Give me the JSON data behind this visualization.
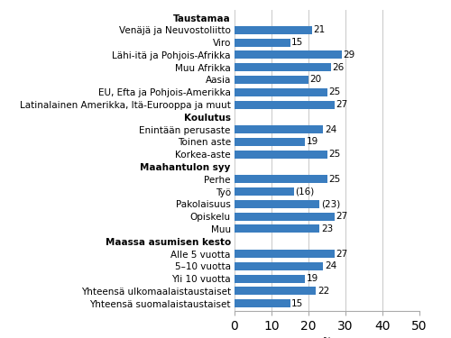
{
  "categories": [
    "Taustamaa",
    "Venäjä ja Neuvostoliitto",
    "Viro",
    "Lähi-itä ja Pohjois-Afrikka",
    "Muu Afrikka",
    "Aasia",
    "EU, Efta ja Pohjois-Amerikka",
    "Latinalainen Amerikka, Itä-Eurooppa ja muut",
    "Koulutus",
    "Enintään perusaste",
    "Toinen aste",
    "Korkea-aste",
    "Maahantulon syy",
    "Perhe",
    "Työ",
    "Pakolaisuus",
    "Opiskelu",
    "Muu",
    "Maassa asumisen kesto",
    "Alle 5 vuotta",
    "5–10 vuotta",
    "Yli 10 vuotta",
    "Yhteensä ulkomaalaistaustaiset",
    "Yhteensä suomalaistaustaiset"
  ],
  "values": [
    null,
    21,
    15,
    29,
    26,
    20,
    25,
    27,
    null,
    24,
    19,
    25,
    null,
    25,
    16,
    23,
    27,
    23,
    null,
    27,
    24,
    19,
    22,
    15
  ],
  "value_labels": [
    null,
    "21",
    "15",
    "29",
    "26",
    "20",
    "25",
    "27",
    null,
    "24",
    "19",
    "25",
    null,
    "25",
    "(16)",
    "(23)",
    "27",
    "23",
    null,
    "27",
    "24",
    "19",
    "22",
    "15"
  ],
  "bold_indices": [
    0,
    8,
    12,
    18
  ],
  "bar_color": "#3a7dbf",
  "background_color": "#ffffff",
  "xlabel": "%",
  "xlim": [
    0,
    50
  ],
  "xticks": [
    0,
    10,
    20,
    30,
    40,
    50
  ],
  "grid_color": "#c8c8c8",
  "label_fontsize": 7.5,
  "value_fontsize": 7.5,
  "bar_height": 0.65
}
